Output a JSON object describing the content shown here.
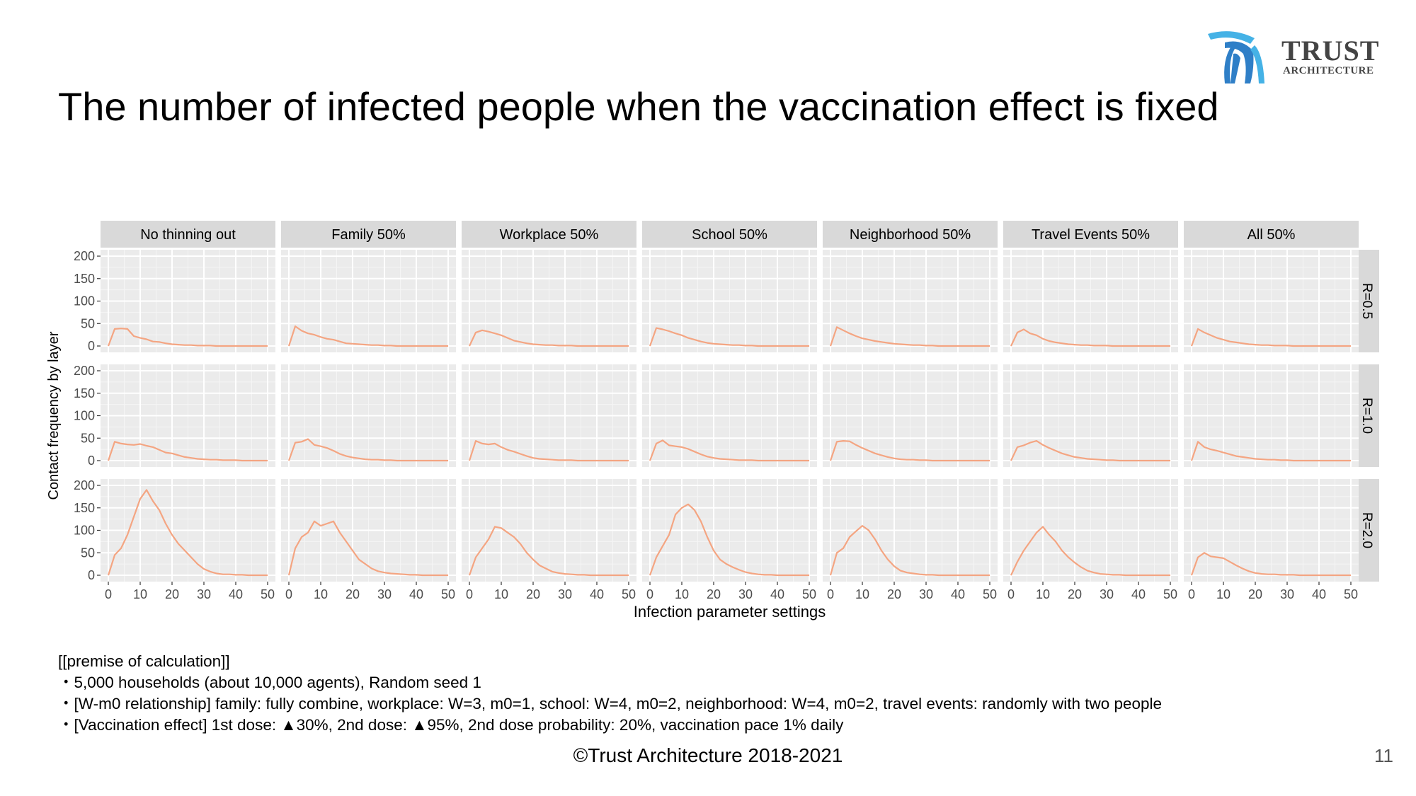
{
  "header": {
    "title": "The number of infected people when the vaccination effect is fixed",
    "logo_line1": "TRUST",
    "logo_line2": "ARCHITECTURE",
    "logo_colors": [
      "#2f7fc7",
      "#45b2e6"
    ]
  },
  "chart_data": {
    "type": "line",
    "layout": "facet-grid",
    "xlabel": "Infection parameter settings",
    "ylabel": "Contact frequency by layer",
    "xlim": [
      0,
      50
    ],
    "ylim": [
      0,
      200
    ],
    "xticks": [
      0,
      10,
      20,
      30,
      40,
      50
    ],
    "yticks": [
      0,
      50,
      100,
      150,
      200
    ],
    "grid": true,
    "line_color": "#f4a582",
    "panel_bg": "#ebebeb",
    "strip_bg": "#d9d9d9",
    "columns": [
      "No thinning out",
      "Family 50%",
      "Workplace 50%",
      "School 50%",
      "Neighborhood 50%",
      "Travel Events 50%",
      "All 50%"
    ],
    "rows": [
      "R=0.5",
      "R=1.0",
      "R=2.0"
    ],
    "x_step": 2,
    "series": [
      [
        {
          "name": "No thinning out | R=0.5",
          "values": [
            0,
            38,
            39,
            38,
            22,
            18,
            15,
            10,
            9,
            6,
            4,
            3,
            2,
            2,
            1,
            1,
            1,
            0,
            0,
            0,
            0,
            0,
            0,
            0,
            0,
            0
          ]
        },
        {
          "name": "Family 50% | R=0.5",
          "values": [
            0,
            44,
            34,
            28,
            25,
            20,
            16,
            14,
            10,
            6,
            5,
            4,
            3,
            2,
            2,
            1,
            1,
            0,
            0,
            0,
            0,
            0,
            0,
            0,
            0,
            0
          ]
        },
        {
          "name": "Workplace 50% | R=0.5",
          "values": [
            0,
            30,
            35,
            32,
            28,
            24,
            18,
            12,
            9,
            6,
            4,
            3,
            2,
            2,
            1,
            1,
            1,
            0,
            0,
            0,
            0,
            0,
            0,
            0,
            0,
            0
          ]
        },
        {
          "name": "School 50% | R=0.5",
          "values": [
            0,
            40,
            37,
            33,
            28,
            24,
            18,
            14,
            10,
            7,
            5,
            4,
            3,
            2,
            2,
            1,
            1,
            0,
            0,
            0,
            0,
            0,
            0,
            0,
            0,
            0
          ]
        },
        {
          "name": "Neighborhood 50% | R=0.5",
          "values": [
            0,
            42,
            35,
            28,
            22,
            17,
            14,
            11,
            9,
            7,
            5,
            4,
            3,
            2,
            2,
            1,
            1,
            0,
            0,
            0,
            0,
            0,
            0,
            0,
            0,
            0
          ]
        },
        {
          "name": "Travel Events 50% | R=0.5",
          "values": [
            0,
            30,
            37,
            28,
            24,
            16,
            11,
            8,
            6,
            4,
            3,
            2,
            2,
            1,
            1,
            1,
            0,
            0,
            0,
            0,
            0,
            0,
            0,
            0,
            0,
            0
          ]
        },
        {
          "name": "All 50% | R=0.5",
          "values": [
            0,
            38,
            30,
            24,
            18,
            14,
            10,
            8,
            6,
            4,
            3,
            2,
            2,
            1,
            1,
            1,
            0,
            0,
            0,
            0,
            0,
            0,
            0,
            0,
            0,
            0
          ]
        }
      ],
      [
        {
          "name": "No thinning out | R=1.0",
          "values": [
            0,
            42,
            38,
            36,
            35,
            37,
            33,
            30,
            24,
            18,
            16,
            12,
            8,
            6,
            4,
            3,
            2,
            2,
            1,
            1,
            1,
            0,
            0,
            0,
            0,
            0
          ]
        },
        {
          "name": "Family 50% | R=1.0",
          "values": [
            0,
            40,
            42,
            48,
            35,
            32,
            28,
            22,
            15,
            10,
            7,
            5,
            3,
            2,
            2,
            1,
            1,
            0,
            0,
            0,
            0,
            0,
            0,
            0,
            0,
            0
          ]
        },
        {
          "name": "Workplace 50% | R=1.0",
          "values": [
            0,
            44,
            38,
            36,
            38,
            30,
            24,
            20,
            15,
            10,
            6,
            4,
            3,
            2,
            1,
            1,
            1,
            0,
            0,
            0,
            0,
            0,
            0,
            0,
            0,
            0
          ]
        },
        {
          "name": "School 50% | R=1.0",
          "values": [
            0,
            38,
            45,
            34,
            32,
            30,
            26,
            20,
            14,
            9,
            6,
            4,
            3,
            2,
            1,
            1,
            1,
            0,
            0,
            0,
            0,
            0,
            0,
            0,
            0,
            0
          ]
        },
        {
          "name": "Neighborhood 50% | R=1.0",
          "values": [
            0,
            42,
            44,
            43,
            35,
            28,
            22,
            16,
            12,
            8,
            5,
            3,
            2,
            2,
            1,
            1,
            0,
            0,
            0,
            0,
            0,
            0,
            0,
            0,
            0,
            0
          ]
        },
        {
          "name": "Travel Events 50% | R=1.0",
          "values": [
            0,
            30,
            34,
            40,
            44,
            35,
            28,
            22,
            16,
            12,
            8,
            6,
            4,
            3,
            2,
            1,
            1,
            0,
            0,
            0,
            0,
            0,
            0,
            0,
            0,
            0
          ]
        },
        {
          "name": "All 50% | R=1.0",
          "values": [
            0,
            42,
            30,
            25,
            22,
            18,
            14,
            10,
            8,
            6,
            4,
            3,
            2,
            2,
            1,
            1,
            0,
            0,
            0,
            0,
            0,
            0,
            0,
            0,
            0,
            0
          ]
        }
      ],
      [
        {
          "name": "No thinning out | R=2.0",
          "values": [
            0,
            45,
            60,
            90,
            130,
            170,
            190,
            165,
            145,
            115,
            90,
            70,
            55,
            40,
            25,
            14,
            8,
            4,
            2,
            2,
            1,
            1,
            0,
            0,
            0,
            0
          ]
        },
        {
          "name": "Family 50% | R=2.0",
          "values": [
            0,
            60,
            85,
            95,
            120,
            110,
            115,
            120,
            95,
            75,
            55,
            35,
            25,
            15,
            9,
            6,
            4,
            3,
            2,
            1,
            1,
            0,
            0,
            0,
            0,
            0
          ]
        },
        {
          "name": "Workplace 50% | R=2.0",
          "values": [
            0,
            40,
            60,
            80,
            108,
            105,
            95,
            85,
            70,
            50,
            35,
            22,
            15,
            8,
            5,
            3,
            2,
            1,
            1,
            0,
            0,
            0,
            0,
            0,
            0,
            0
          ]
        },
        {
          "name": "School 50% | R=2.0",
          "values": [
            0,
            40,
            65,
            90,
            135,
            150,
            158,
            145,
            120,
            85,
            55,
            35,
            25,
            18,
            12,
            7,
            4,
            2,
            1,
            1,
            0,
            0,
            0,
            0,
            0,
            0
          ]
        },
        {
          "name": "Neighborhood 50% | R=2.0",
          "values": [
            0,
            50,
            60,
            85,
            98,
            110,
            100,
            80,
            55,
            35,
            20,
            10,
            6,
            4,
            2,
            1,
            1,
            0,
            0,
            0,
            0,
            0,
            0,
            0,
            0,
            0
          ]
        },
        {
          "name": "Travel Events 50% | R=2.0",
          "values": [
            0,
            30,
            55,
            75,
            95,
            108,
            90,
            75,
            55,
            40,
            28,
            18,
            10,
            6,
            3,
            2,
            1,
            1,
            0,
            0,
            0,
            0,
            0,
            0,
            0,
            0
          ]
        },
        {
          "name": "All 50% | R=2.0",
          "values": [
            0,
            40,
            50,
            42,
            40,
            38,
            30,
            22,
            15,
            9,
            5,
            3,
            2,
            2,
            1,
            1,
            1,
            0,
            0,
            0,
            0,
            0,
            0,
            0,
            0,
            0
          ]
        }
      ]
    ]
  },
  "premise": {
    "heading": "[[premise of calculation]]",
    "items": [
      "・5,000 households (about 10,000 agents), Random seed 1",
      "・[W-m0 relationship] family: fully combine, workplace: W=3, m0=1, school: W=4, m0=2, neighborhood: W=4, m0=2, travel events: randomly with two people",
      "・[Vaccination effect] 1st dose: ▲30%, 2nd dose: ▲95%, 2nd dose probability: 20%, vaccination pace 1% daily"
    ]
  },
  "footer": {
    "copyright": "©Trust Architecture 2018-2021",
    "page_number": "11"
  }
}
